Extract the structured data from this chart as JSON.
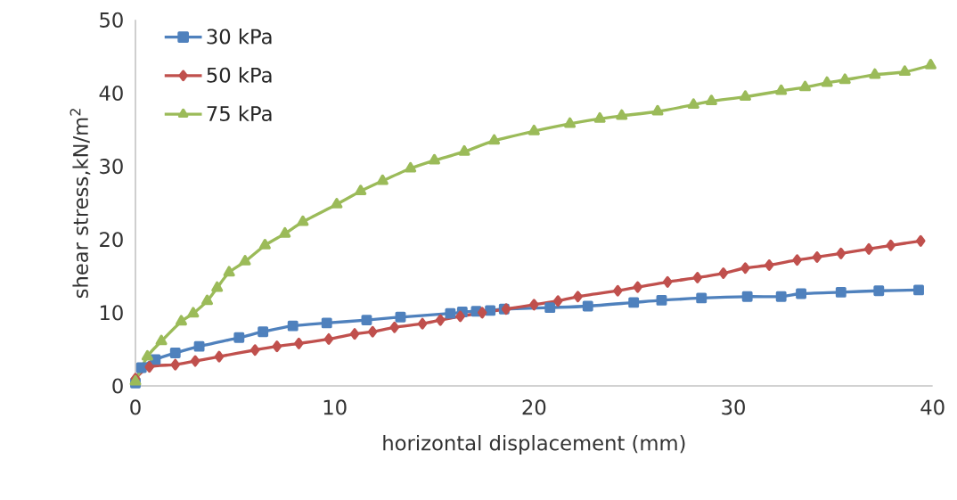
{
  "chart_data": {
    "type": "line",
    "xlabel": "horizontal displacement (mm)",
    "ylabel": "shear stress,kN/m$^{2}$",
    "xlim": [
      0,
      40
    ],
    "ylim": [
      0,
      50
    ],
    "xticks": [
      0,
      10,
      20,
      30,
      40
    ],
    "yticks": [
      0,
      10,
      20,
      30,
      40,
      50
    ],
    "grid": false,
    "legend": "top left",
    "line_style": "solid",
    "series": [
      {
        "name": "30 kPa",
        "color": "#4f81bd",
        "marker": "square",
        "x": [
          0,
          0.3,
          1.0,
          2.0,
          3.2,
          5.2,
          6.4,
          7.9,
          9.6,
          11.6,
          13.3,
          15.8,
          16.4,
          17.1,
          17.8,
          18.5,
          20.8,
          22.7,
          25.0,
          26.4,
          28.4,
          30.7,
          32.4,
          33.4,
          35.4,
          37.3,
          39.3
        ],
        "values": [
          0.4,
          2.5,
          3.6,
          4.5,
          5.4,
          6.6,
          7.4,
          8.2,
          8.6,
          9.0,
          9.4,
          9.9,
          10.1,
          10.2,
          10.3,
          10.5,
          10.7,
          10.9,
          11.4,
          11.7,
          12.0,
          12.2,
          12.2,
          12.6,
          12.8,
          13.0,
          13.1
        ]
      },
      {
        "name": "50 kPa",
        "color": "#c0504d",
        "marker": "diamond",
        "x": [
          0,
          0.7,
          2.0,
          3.0,
          4.2,
          6.0,
          7.1,
          8.2,
          9.7,
          11.0,
          11.9,
          13.0,
          14.4,
          15.3,
          16.3,
          17.4,
          18.6,
          20.0,
          21.2,
          22.2,
          24.2,
          25.2,
          26.7,
          28.2,
          29.5,
          30.6,
          31.8,
          33.2,
          34.2,
          35.4,
          36.8,
          37.9,
          39.4
        ],
        "values": [
          1.0,
          2.6,
          2.9,
          3.4,
          4.0,
          4.9,
          5.4,
          5.8,
          6.4,
          7.1,
          7.4,
          8.0,
          8.5,
          9.0,
          9.5,
          10.0,
          10.5,
          11.1,
          11.6,
          12.2,
          13.0,
          13.5,
          14.2,
          14.8,
          15.4,
          16.1,
          16.5,
          17.2,
          17.6,
          18.1,
          18.7,
          19.2,
          19.8
        ]
      },
      {
        "name": "75 kPa",
        "color": "#9bbb59",
        "marker": "triangle",
        "x": [
          0,
          0.6,
          1.3,
          2.3,
          2.9,
          3.6,
          4.1,
          4.7,
          5.5,
          6.5,
          7.5,
          8.4,
          10.1,
          11.3,
          12.4,
          13.8,
          15.0,
          16.5,
          18.0,
          20.0,
          21.8,
          23.3,
          24.4,
          26.2,
          28.0,
          28.9,
          30.6,
          32.4,
          33.6,
          34.7,
          35.6,
          37.1,
          38.6,
          39.9
        ],
        "values": [
          0.6,
          4.0,
          6.1,
          8.8,
          9.9,
          11.6,
          13.4,
          15.5,
          17.0,
          19.2,
          20.8,
          22.4,
          24.8,
          26.6,
          28.0,
          29.7,
          30.8,
          32.0,
          33.5,
          34.8,
          35.8,
          36.5,
          36.9,
          37.5,
          38.4,
          38.9,
          39.5,
          40.3,
          40.8,
          41.4,
          41.8,
          42.5,
          42.9,
          43.8
        ]
      }
    ]
  }
}
